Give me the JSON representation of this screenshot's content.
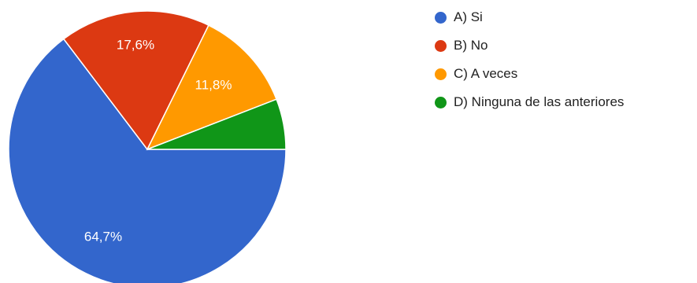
{
  "colors": {
    "slice_a": "#3366CC",
    "slice_b": "#DC3912",
    "slice_c": "#FF9900",
    "slice_d": "#109618",
    "label_text": "#FFFFFF"
  },
  "chart_data": {
    "type": "pie",
    "title": "",
    "slices": [
      {
        "label": "A) Si",
        "value": 64.7,
        "display": "64,7%",
        "color": "#3366CC"
      },
      {
        "label": "B) No",
        "value": 17.6,
        "display": "17,6%",
        "color": "#DC3912"
      },
      {
        "label": "C) A veces",
        "value": 11.8,
        "display": "11,8%",
        "color": "#FF9900"
      },
      {
        "label": "D) Ninguna de las anteriores",
        "value": 5.9,
        "display": "",
        "color": "#109618"
      }
    ],
    "legend": {
      "placement": "right",
      "items": [
        "A) Si",
        "B) No",
        "C) A veces",
        "D) Ninguna de las anteriores"
      ]
    }
  }
}
